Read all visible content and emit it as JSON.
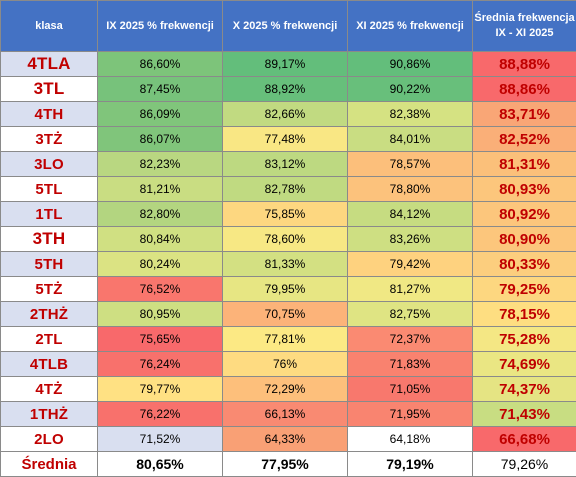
{
  "table": {
    "headers": [
      "klasa",
      "IX 2025 % frekwencji",
      "X 2025 % frekwencji",
      "XI 2025 % frekwencji",
      "Średnia frekwencja IX - XI 2025"
    ],
    "rows": [
      {
        "klasa": "4TLA",
        "ix": "86,60%",
        "x": "89,17%",
        "xi": "90,86%",
        "avg": "88,88%",
        "colors": [
          "#7dc47a",
          "#63be7b",
          "#63be7b",
          "#f8696b"
        ]
      },
      {
        "klasa": "3TL",
        "ix": "87,45%",
        "x": "88,92%",
        "xi": "90,22%",
        "avg": "88,86%",
        "colors": [
          "#77c27b",
          "#67bf7b",
          "#68bf7b",
          "#f8696b"
        ]
      },
      {
        "klasa": "4TH",
        "ix": "86,09%",
        "x": "82,66%",
        "xi": "82,38%",
        "avg": "83,71%",
        "colors": [
          "#80c57b",
          "#c1da81",
          "#d5e282",
          "#f9a676"
        ]
      },
      {
        "klasa": "3TŻ",
        "ix": "86,07%",
        "x": "77,48%",
        "xi": "84,01%",
        "avg": "82,52%",
        "colors": [
          "#80c57b",
          "#f9e784",
          "#c9dd82",
          "#faaf78"
        ]
      },
      {
        "klasa": "3LO",
        "ix": "82,23%",
        "x": "83,12%",
        "xi": "78,57%",
        "avg": "81,31%",
        "colors": [
          "#b9d781",
          "#bdd981",
          "#fcbf7b",
          "#fbc07a"
        ]
      },
      {
        "klasa": "5TL",
        "ix": "81,21%",
        "x": "82,78%",
        "xi": "78,80%",
        "avg": "80,93%",
        "colors": [
          "#c9dd82",
          "#c0da81",
          "#fcc27c",
          "#fcc67c"
        ]
      },
      {
        "klasa": "1TL",
        "ix": "82,80%",
        "x": "75,85%",
        "xi": "84,12%",
        "avg": "80,92%",
        "colors": [
          "#b3d580",
          "#fdd780",
          "#c6dc81",
          "#fcc67c"
        ]
      },
      {
        "klasa": "3TH",
        "ix": "80,84%",
        "x": "78,60%",
        "xi": "83,26%",
        "avg": "80,90%",
        "colors": [
          "#d0e082",
          "#f7e884",
          "#ced f82",
          "#fcc67c"
        ]
      },
      {
        "klasa": "5TH",
        "ix": "80,24%",
        "x": "81,33%",
        "xi": "79,42%",
        "avg": "80,33%",
        "colors": [
          "#dbe383",
          "#d3e082",
          "#fed27f",
          "#fcce7e"
        ]
      },
      {
        "klasa": "5TŻ",
        "ix": "76,52%",
        "x": "79,95%",
        "xi": "81,27%",
        "avg": "79,25%",
        "colors": [
          "#f9766d",
          "#e7e683",
          "#f0e884",
          "#fdd780"
        ]
      },
      {
        "klasa": "2THŻ",
        "ix": "80,95%",
        "x": "70,75%",
        "xi": "82,75%",
        "avg": "78,15%",
        "colors": [
          "#cedf82",
          "#fcb379",
          "#dfe483",
          "#fede81"
        ]
      },
      {
        "klasa": "2TL",
        "ix": "75,65%",
        "x": "77,81%",
        "xi": "72,37%",
        "avg": "75,28%",
        "colors": [
          "#f8696b",
          "#fce984",
          "#fa8a72",
          "#f4e784"
        ]
      },
      {
        "klasa": "4TLB",
        "ix": "76,24%",
        "x": "76%",
        "xi": "71,83%",
        "avg": "74,69%",
        "colors": [
          "#f8716c",
          "#fedb81",
          "#f9826f",
          "#eae683"
        ]
      },
      {
        "klasa": "4TŻ",
        "ix": "79,77%",
        "x": "72,29%",
        "xi": "71,05%",
        "avg": "74,37%",
        "colors": [
          "#ffe183",
          "#fdbf7b",
          "#f8786d",
          "#e5e483"
        ]
      },
      {
        "klasa": "1THŻ",
        "ix": "76,22%",
        "x": "66,13%",
        "xi": "71,95%",
        "avg": "71,43%",
        "colors": [
          "#f8716c",
          "#f98a72",
          "#f98470",
          "#c8dd82"
        ]
      },
      {
        "klasa": "2LO",
        "ix": "71,52%",
        "x": "64,33%",
        "xi": "64,18%",
        "avg": "66,68%",
        "colors": [
          "#d9dff0",
          "#f9a075",
          "#ffffff",
          "#f8696b"
        ]
      }
    ],
    "summary": {
      "label": "Średnia",
      "ix": "80,65%",
      "x": "77,95%",
      "xi": "79,19%",
      "avg": "79,26%"
    }
  }
}
